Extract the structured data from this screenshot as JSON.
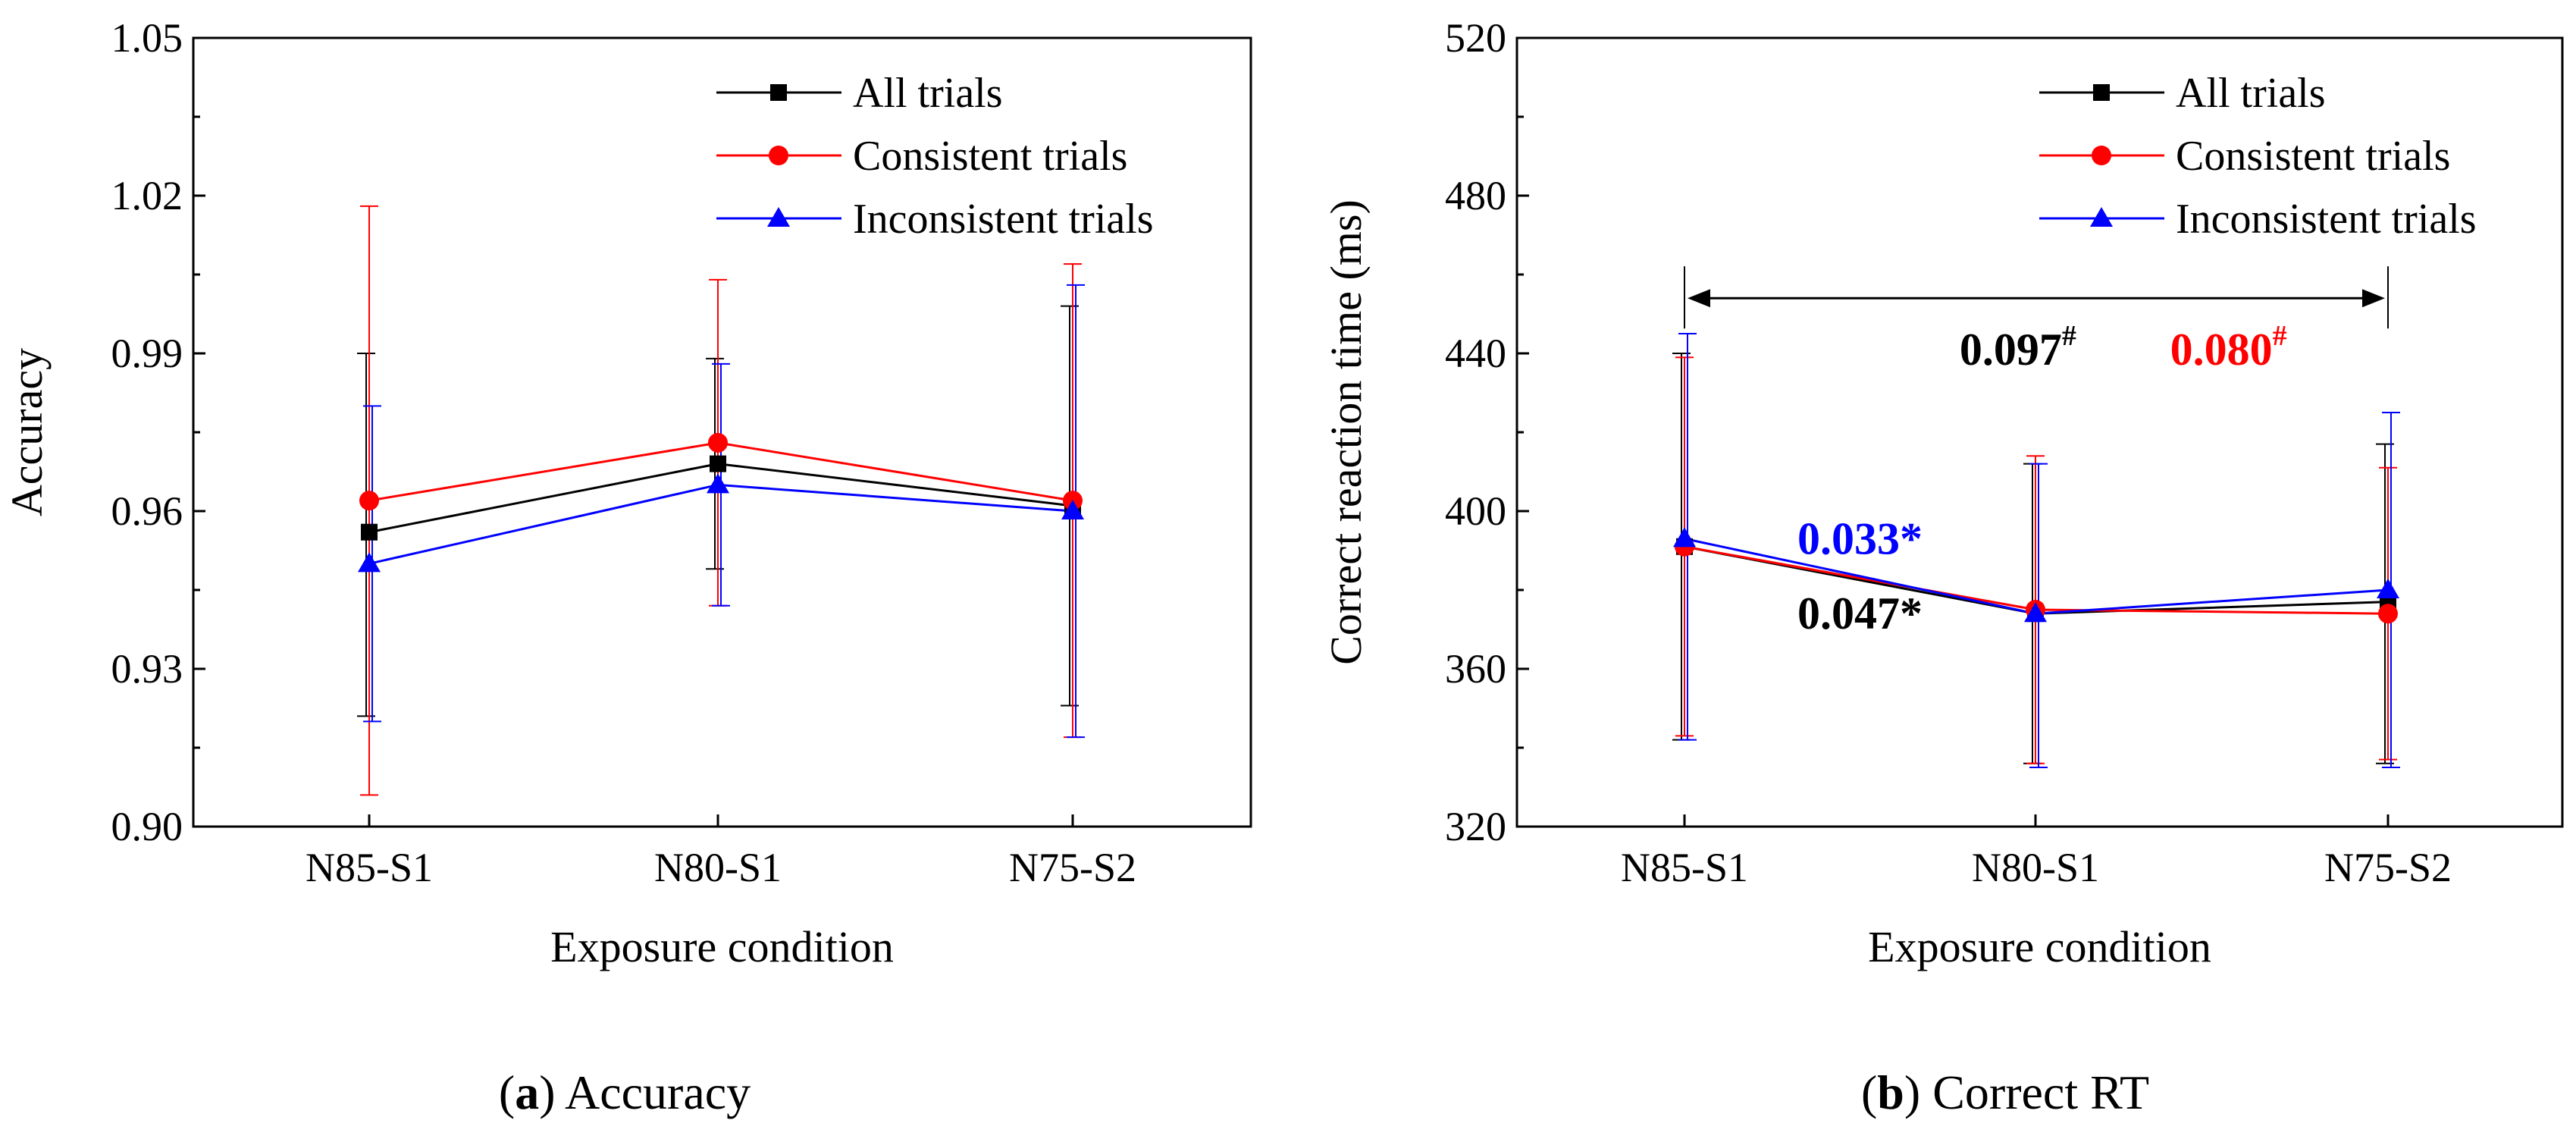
{
  "chart_data": [
    {
      "type": "line",
      "title": "",
      "caption_letter": "a",
      "caption_text": "Accuracy",
      "xlabel": "Exposure condition",
      "ylabel": "Accuracy",
      "categories": [
        "N85-S1",
        "N80-S1",
        "N75-S2"
      ],
      "ylim": [
        0.9,
        1.05
      ],
      "yticks": [
        0.9,
        0.93,
        0.96,
        0.99,
        1.02,
        1.05
      ],
      "ytick_labels": [
        "0.90",
        "0.93",
        "0.96",
        "0.99",
        "1.02",
        "1.05"
      ],
      "grid": false,
      "legend_position": "top-right",
      "series": [
        {
          "name": "All trials",
          "color": "#000000",
          "marker": "square",
          "values": [
            0.956,
            0.969,
            0.961
          ],
          "err_low": [
            0.921,
            0.949,
            0.923
          ],
          "err_high": [
            0.99,
            0.989,
            0.999
          ]
        },
        {
          "name": "Consistent trials",
          "color": "#ff0000",
          "marker": "circle",
          "values": [
            0.962,
            0.973,
            0.962
          ],
          "err_low": [
            0.906,
            0.942,
            0.917
          ],
          "err_high": [
            1.018,
            1.004,
            1.007
          ]
        },
        {
          "name": "Inconsistent trials",
          "color": "#0000ff",
          "marker": "triangle",
          "values": [
            0.95,
            0.965,
            0.96
          ],
          "err_low": [
            0.92,
            0.942,
            0.917
          ],
          "err_high": [
            0.98,
            0.988,
            1.003
          ]
        }
      ],
      "annotations": []
    },
    {
      "type": "line",
      "title": "",
      "caption_letter": "b",
      "caption_text": "Correct RT",
      "xlabel": "Exposure condition",
      "ylabel": "Correct reaction time (ms)",
      "categories": [
        "N85-S1",
        "N80-S1",
        "N75-S2"
      ],
      "ylim": [
        320,
        520
      ],
      "yticks": [
        320,
        360,
        400,
        440,
        480,
        520
      ],
      "ytick_labels": [
        "320",
        "360",
        "400",
        "440",
        "480",
        "520"
      ],
      "grid": false,
      "legend_position": "top-right",
      "series": [
        {
          "name": "All trials",
          "color": "#000000",
          "marker": "square",
          "values": [
            391,
            374,
            377
          ],
          "err_low": [
            342,
            336,
            336
          ],
          "err_high": [
            440,
            412,
            417
          ]
        },
        {
          "name": "Consistent trials",
          "color": "#ff0000",
          "marker": "circle",
          "values": [
            391,
            375,
            374
          ],
          "err_low": [
            343,
            336,
            337
          ],
          "err_high": [
            439,
            414,
            411
          ]
        },
        {
          "name": "Inconsistent trials",
          "color": "#0000ff",
          "marker": "triangle",
          "values": [
            393,
            374,
            380
          ],
          "err_low": [
            342,
            335,
            335
          ],
          "err_high": [
            445,
            412,
            425
          ]
        }
      ],
      "bracket": {
        "from": "N85-S1",
        "to": "N75-S2",
        "y": 454
      },
      "annotations": [
        {
          "text": "0.097",
          "sup": "#",
          "color": "#000000",
          "x": 0.95,
          "y": 441
        },
        {
          "text": "0.080",
          "sup": "#",
          "color": "#ff0000",
          "x": 1.55,
          "y": 441
        },
        {
          "text": "0.033*",
          "color": "#0000ff",
          "x": 0.5,
          "y": 393
        },
        {
          "text": "0.047*",
          "color": "#000000",
          "x": 0.5,
          "y": 374
        }
      ]
    }
  ]
}
